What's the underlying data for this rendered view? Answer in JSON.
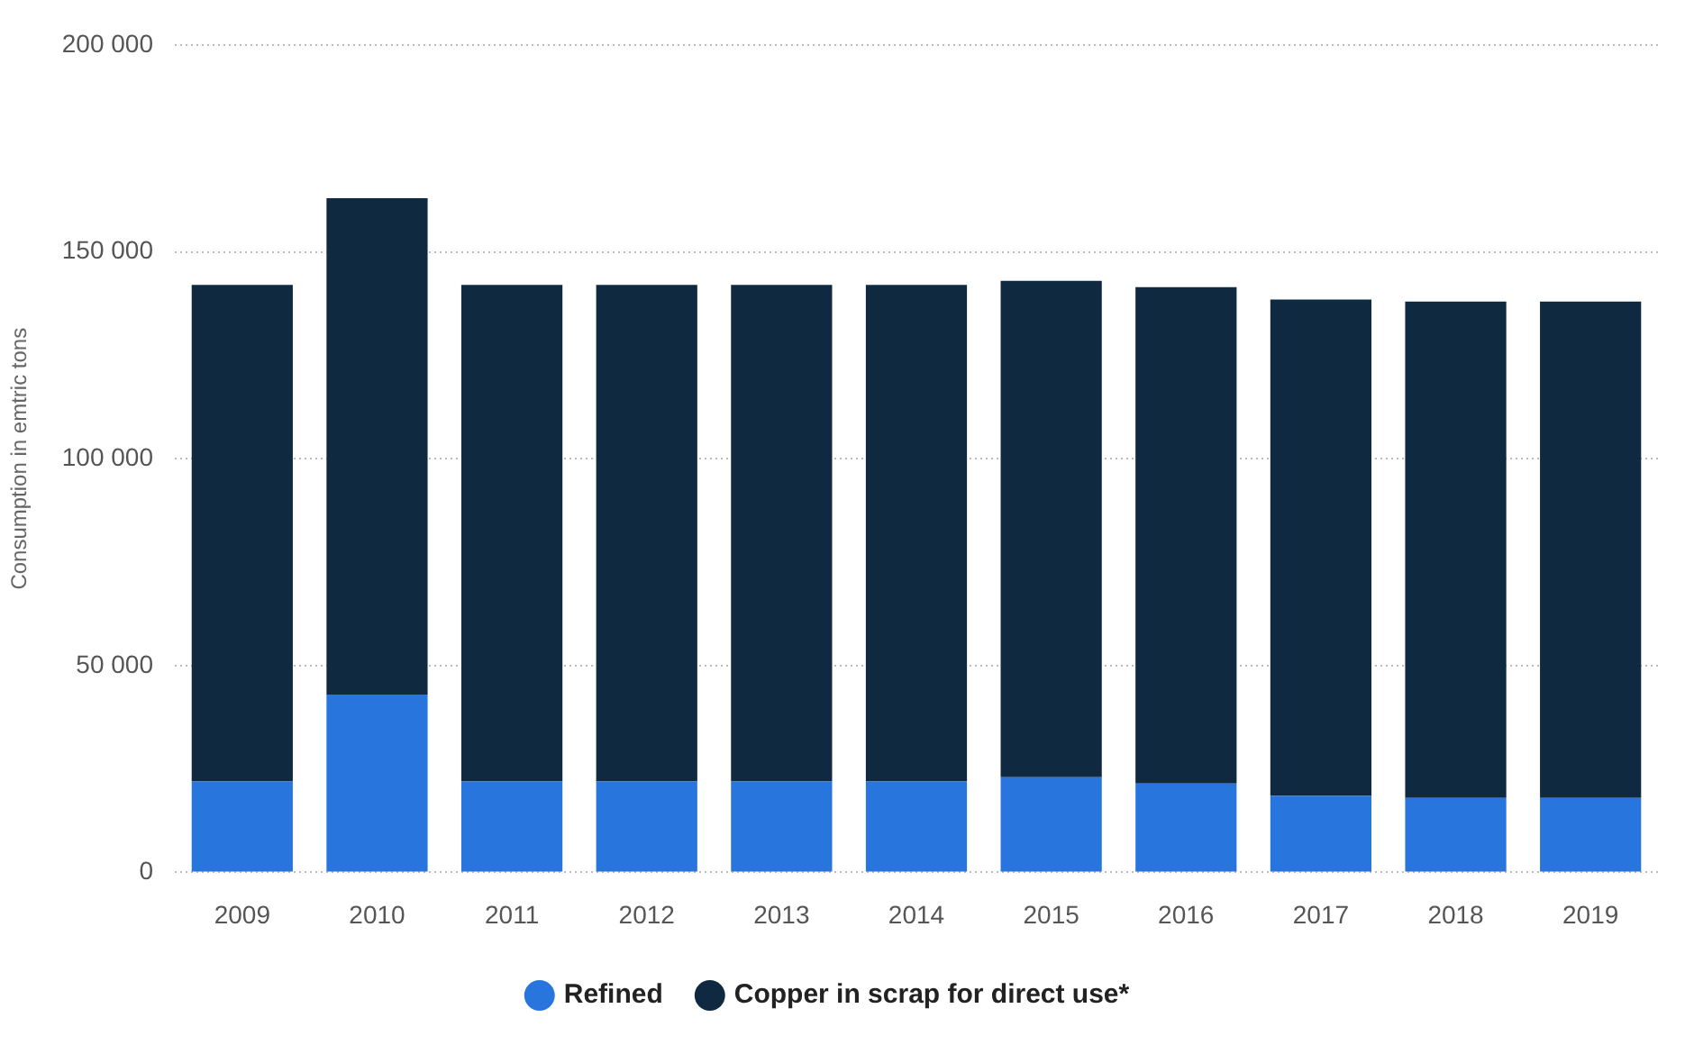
{
  "chart_data": {
    "type": "bar",
    "stacked": true,
    "ylabel": "Consumption in emtric tons",
    "categories": [
      "2009",
      "2010",
      "2011",
      "2012",
      "2013",
      "2014",
      "2015",
      "2016",
      "2017",
      "2018",
      "2019"
    ],
    "series": [
      {
        "name": "Refined",
        "color": "#2876dd",
        "values": [
          22000,
          43000,
          22000,
          22000,
          22000,
          22000,
          23000,
          21500,
          18500,
          18000,
          18000
        ]
      },
      {
        "name": "Copper in scrap for direct use*",
        "color": "#0f2a40",
        "values": [
          120000,
          120000,
          120000,
          120000,
          120000,
          120000,
          120000,
          120000,
          120000,
          120000,
          120000
        ]
      }
    ],
    "ylim": [
      0,
      200000
    ],
    "yticks": [
      {
        "value": 0,
        "label": "0"
      },
      {
        "value": 50000,
        "label": "50 000"
      },
      {
        "value": 100000,
        "label": "100 000"
      },
      {
        "value": 150000,
        "label": "150 000"
      },
      {
        "value": 200000,
        "label": "200 000"
      }
    ],
    "grid": "y",
    "legend": "bottom"
  }
}
